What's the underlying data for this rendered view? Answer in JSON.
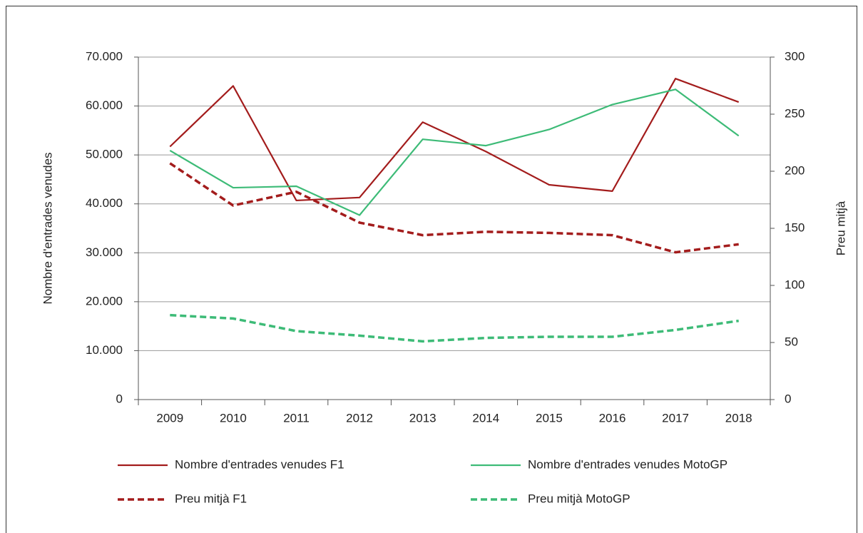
{
  "chart_data": {
    "type": "line",
    "categories": [
      "2009",
      "2010",
      "2011",
      "2012",
      "2013",
      "2014",
      "2015",
      "2016",
      "2017",
      "2018"
    ],
    "ylabel": "Nombre d'entrades venudes",
    "y2label": "Preu mitjà",
    "ylim": [
      0,
      70000
    ],
    "yticks": [
      0,
      {
        "value": 10000,
        "label": "10.000"
      },
      {
        "value": 20000,
        "label": "20.000"
      },
      {
        "value": 30000,
        "label": "30.000"
      },
      {
        "value": 40000,
        "label": "40.000"
      },
      {
        "value": 50000,
        "label": "50.000"
      },
      {
        "value": 60000,
        "label": "60.000"
      },
      {
        "value": 70000,
        "label": "70.000"
      }
    ],
    "y2lim": [
      0,
      300
    ],
    "y2ticks": [
      0,
      50,
      100,
      150,
      200,
      250,
      300
    ],
    "grid": true,
    "legend": "bottom",
    "series": [
      {
        "name": "Nombre d'entrades venudes F1",
        "color": "#a31c1c",
        "line_style": "solid",
        "values": [
          51700,
          64100,
          40700,
          41300,
          56700,
          50700,
          43900,
          42600,
          65600,
          60800
        ]
      },
      {
        "name": "Nombre d'entrades venudes MotoGP",
        "color": "#3dbb77",
        "line_style": "solid",
        "values": [
          50900,
          43300,
          43600,
          37700,
          53200,
          51900,
          55200,
          60300,
          63400,
          53900
        ]
      },
      {
        "name": "Preu mitjà F1",
        "color": "#a31c1c",
        "line_style": "dashed",
        "axis": "y2",
        "values": [
          207,
          170,
          182,
          155,
          144,
          147,
          146,
          144,
          129,
          136
        ]
      },
      {
        "name": "Preu mitjà MotoGP",
        "color": "#3dbb77",
        "line_style": "dashed",
        "axis": "y2",
        "values": [
          74,
          71,
          60,
          56,
          51,
          54,
          55,
          55,
          61,
          69
        ]
      }
    ]
  }
}
